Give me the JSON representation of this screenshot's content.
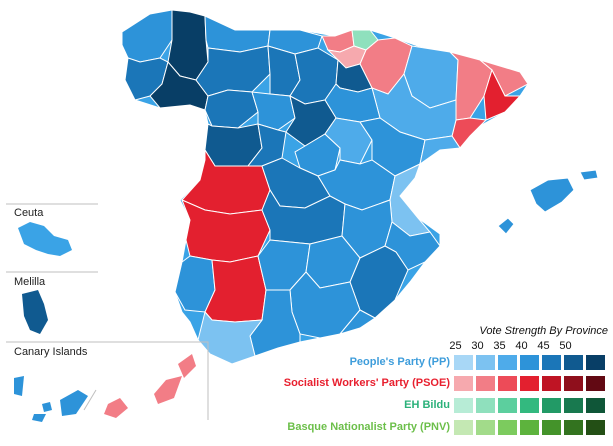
{
  "insets": [
    {
      "label": "Ceuta"
    },
    {
      "label": "Melilla"
    },
    {
      "label": "Canary Islands"
    }
  ],
  "legend": {
    "title": "Vote Strength By Province",
    "ticks": [
      "25",
      "30",
      "35",
      "40",
      "45",
      "50"
    ],
    "parties": [
      {
        "name": "People's Party (PP)",
        "label_color": "#3e9ddb",
        "colors": [
          "#a8d7f6",
          "#7cc2f1",
          "#4eabea",
          "#2d93d9",
          "#1b76b8",
          "#105a90",
          "#083e66"
        ]
      },
      {
        "name": "Socialist Workers' Party (PSOE)",
        "label_color": "#e8202f",
        "colors": [
          "#f6a9ae",
          "#f27d86",
          "#ed4b58",
          "#e3202f",
          "#bf1424",
          "#8f0f1c",
          "#620913"
        ]
      },
      {
        "name": "EH Bildu",
        "label_color": "#2bb17a",
        "colors": [
          "#b7ecd6",
          "#8fe0bd",
          "#5ccf9e",
          "#33b97f",
          "#229a66",
          "#18794f",
          "#0f5638"
        ]
      },
      {
        "name": "Basque Nationalist Party (PNV)",
        "label_color": "#6cbf4a",
        "colors": [
          "#c4e8b3",
          "#a2db8a",
          "#7ccb5e",
          "#5db33d",
          "#44932a",
          "#33731f",
          "#234f15"
        ]
      }
    ]
  },
  "map": {
    "winners": [
      "PP",
      "PSOE",
      "EH Bildu"
    ],
    "provinces": [
      {
        "winner": "PP",
        "color": "#2d93d9"
      },
      {
        "winner": "PP",
        "color": "#105a90"
      },
      {
        "winner": "PP",
        "color": "#1b76b8"
      },
      {
        "winner": "PP",
        "color": "#4eabea"
      },
      {
        "winner": "PP",
        "color": "#083e66"
      },
      {
        "winner": "PP",
        "color": "#105a90"
      },
      {
        "winner": "PP",
        "color": "#2d93d9"
      },
      {
        "winner": "PSOE",
        "color": "#e3202f"
      },
      {
        "winner": "PSOE",
        "color": "#e3202f"
      },
      {
        "winner": "PSOE",
        "color": "#ed4b58"
      },
      {
        "winner": "PSOE",
        "color": "#f27d86"
      },
      {
        "winner": "EH Bildu",
        "color": "#8fe0bd"
      }
    ]
  }
}
